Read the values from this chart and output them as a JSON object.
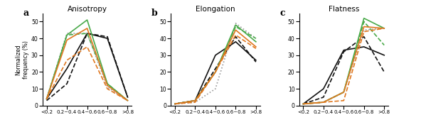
{
  "x_labels": [
    "<0.2",
    "0.2~0.4",
    "0.4~0.6",
    "0.6~0.8",
    ">0.8"
  ],
  "anisotropy": {
    "YH-1": [
      4,
      22,
      43,
      40,
      5
    ],
    "YH-2": [
      3,
      13,
      43,
      41,
      5
    ],
    "YH-3": [
      4,
      43,
      43,
      11,
      3
    ],
    "KJTR-1": [
      4,
      42,
      51,
      13,
      3
    ],
    "KJTR-2": [
      4,
      42,
      43,
      13,
      3
    ],
    "KJTR-3": [
      4,
      39,
      46,
      12,
      3
    ],
    "KJTR-4": [
      4,
      27,
      35,
      10,
      3
    ]
  },
  "elongation": {
    "YH-1": [
      1,
      3,
      30,
      38,
      27
    ],
    "YH-2": [
      1,
      3,
      22,
      41,
      26
    ],
    "YH-3": [
      1,
      2,
      10,
      49,
      40
    ],
    "KJTR-1": [
      1,
      3,
      20,
      48,
      38
    ],
    "KJTR-2": [
      1,
      3,
      20,
      47,
      40
    ],
    "KJTR-3": [
      1,
      3,
      20,
      45,
      35
    ],
    "KJTR-4": [
      1,
      2,
      20,
      42,
      34
    ]
  },
  "flatness": {
    "YH-1": [
      1,
      10,
      33,
      35,
      30
    ],
    "YH-2": [
      1,
      5,
      32,
      41,
      20
    ],
    "YH-3": [
      1,
      2,
      8,
      45,
      46
    ],
    "KJTR-1": [
      1,
      2,
      8,
      52,
      46
    ],
    "KJTR-2": [
      1,
      2,
      8,
      50,
      36
    ],
    "KJTR-3": [
      1,
      2,
      8,
      47,
      46
    ],
    "KJTR-4": [
      1,
      2,
      3,
      44,
      46
    ]
  },
  "series_styles": {
    "YH-1": {
      "color": "#111111",
      "linestyle": "-",
      "linewidth": 1.2
    },
    "YH-2": {
      "color": "#111111",
      "linestyle": "--",
      "linewidth": 1.2
    },
    "YH-3": {
      "color": "#999999",
      "linestyle": ":",
      "linewidth": 1.2
    },
    "KJTR-1": {
      "color": "#4aaa4a",
      "linestyle": "-",
      "linewidth": 1.2
    },
    "KJTR-2": {
      "color": "#4aaa4a",
      "linestyle": "--",
      "linewidth": 1.2
    },
    "KJTR-3": {
      "color": "#e07820",
      "linestyle": "-",
      "linewidth": 1.2
    },
    "KJTR-4": {
      "color": "#e07820",
      "linestyle": "--",
      "linewidth": 1.2
    }
  },
  "ylim": [
    0,
    55
  ],
  "yticks": [
    0,
    10,
    20,
    30,
    40,
    50
  ],
  "panel_labels": [
    "a",
    "b",
    "c"
  ],
  "titles": [
    "Anisotropy",
    "Elongation",
    "Flatness"
  ],
  "ylabel": "Normalized\nfrequency (%)",
  "figsize": [
    5.99,
    1.86
  ],
  "dpi": 100
}
